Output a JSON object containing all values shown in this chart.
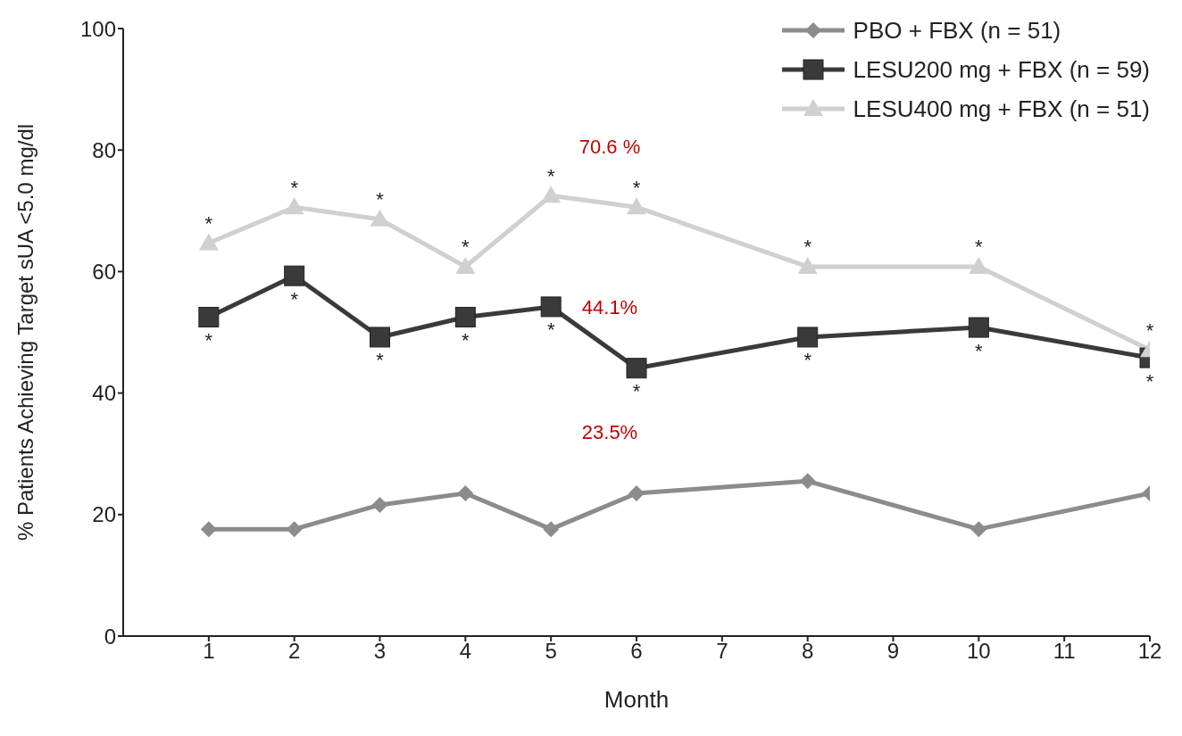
{
  "chart_data": {
    "type": "line",
    "xlabel": "Month",
    "ylabel": "% Patients Achieving Target sUA <5.0 mg/dl",
    "x": [
      1,
      2,
      3,
      4,
      5,
      6,
      8,
      10,
      12
    ],
    "series": [
      {
        "name": "PBO + FBX (n = 51)",
        "color": "#8c8c8c",
        "marker": "diamond",
        "values": [
          17.6,
          17.6,
          21.6,
          23.5,
          17.6,
          23.5,
          25.5,
          17.6,
          23.5
        ]
      },
      {
        "name": "LESU200 mg + FBX (n = 59)",
        "color": "#3a3a3a",
        "marker": "square",
        "values": [
          52.5,
          59.3,
          49.2,
          52.5,
          54.2,
          44.1,
          49.2,
          50.8,
          45.8
        ]
      },
      {
        "name": "LESU400 mg + FBX (n = 51)",
        "color": "#d0d0d0",
        "marker": "triangle",
        "values": [
          64.7,
          70.6,
          68.6,
          60.8,
          72.5,
          70.6,
          60.8,
          60.8,
          47.1
        ]
      }
    ],
    "xlim": [
      0,
      12
    ],
    "xticks": [
      1,
      2,
      3,
      4,
      5,
      6,
      7,
      8,
      9,
      10,
      11,
      12
    ],
    "ylim": [
      0,
      100
    ],
    "yticks": [
      0,
      20,
      40,
      60,
      80,
      100
    ],
    "grid": false,
    "legend": "top right",
    "line_style": "solid",
    "annotations": [
      {
        "text": "*",
        "x": 1,
        "y": 64.7
      },
      {
        "text": "*",
        "x": 2,
        "y": 70.6
      },
      {
        "text": "*",
        "x": 3,
        "y": 68.6
      },
      {
        "text": "*",
        "x": 4,
        "y": 60.8
      },
      {
        "text": "*",
        "x": 5,
        "y": 72.5
      },
      {
        "text": "*",
        "x": 6,
        "y": 70.6
      },
      {
        "text": "*",
        "x": 8,
        "y": 60.8
      },
      {
        "text": "*",
        "x": 10,
        "y": 60.8
      },
      {
        "text": "*",
        "x": 12,
        "y": 47.1
      },
      {
        "text": "*",
        "x": 1,
        "y": 52.5
      },
      {
        "text": "*",
        "x": 2,
        "y": 59.3
      },
      {
        "text": "*",
        "x": 3,
        "y": 49.2
      },
      {
        "text": "*",
        "x": 4,
        "y": 52.5
      },
      {
        "text": "*",
        "x": 5,
        "y": 54.2
      },
      {
        "text": "*",
        "x": 6,
        "y": 44.1
      },
      {
        "text": "*",
        "x": 8,
        "y": 49.2
      },
      {
        "text": "*",
        "x": 10,
        "y": 50.8
      },
      {
        "text": "*",
        "x": 12,
        "y": 45.8
      },
      {
        "text": "70.6 %",
        "x": 6,
        "y": 70.6
      },
      {
        "text": "44.1%",
        "x": 6,
        "y": 44.1
      },
      {
        "text": "23.5%",
        "x": 6,
        "y": 23.5
      }
    ]
  }
}
